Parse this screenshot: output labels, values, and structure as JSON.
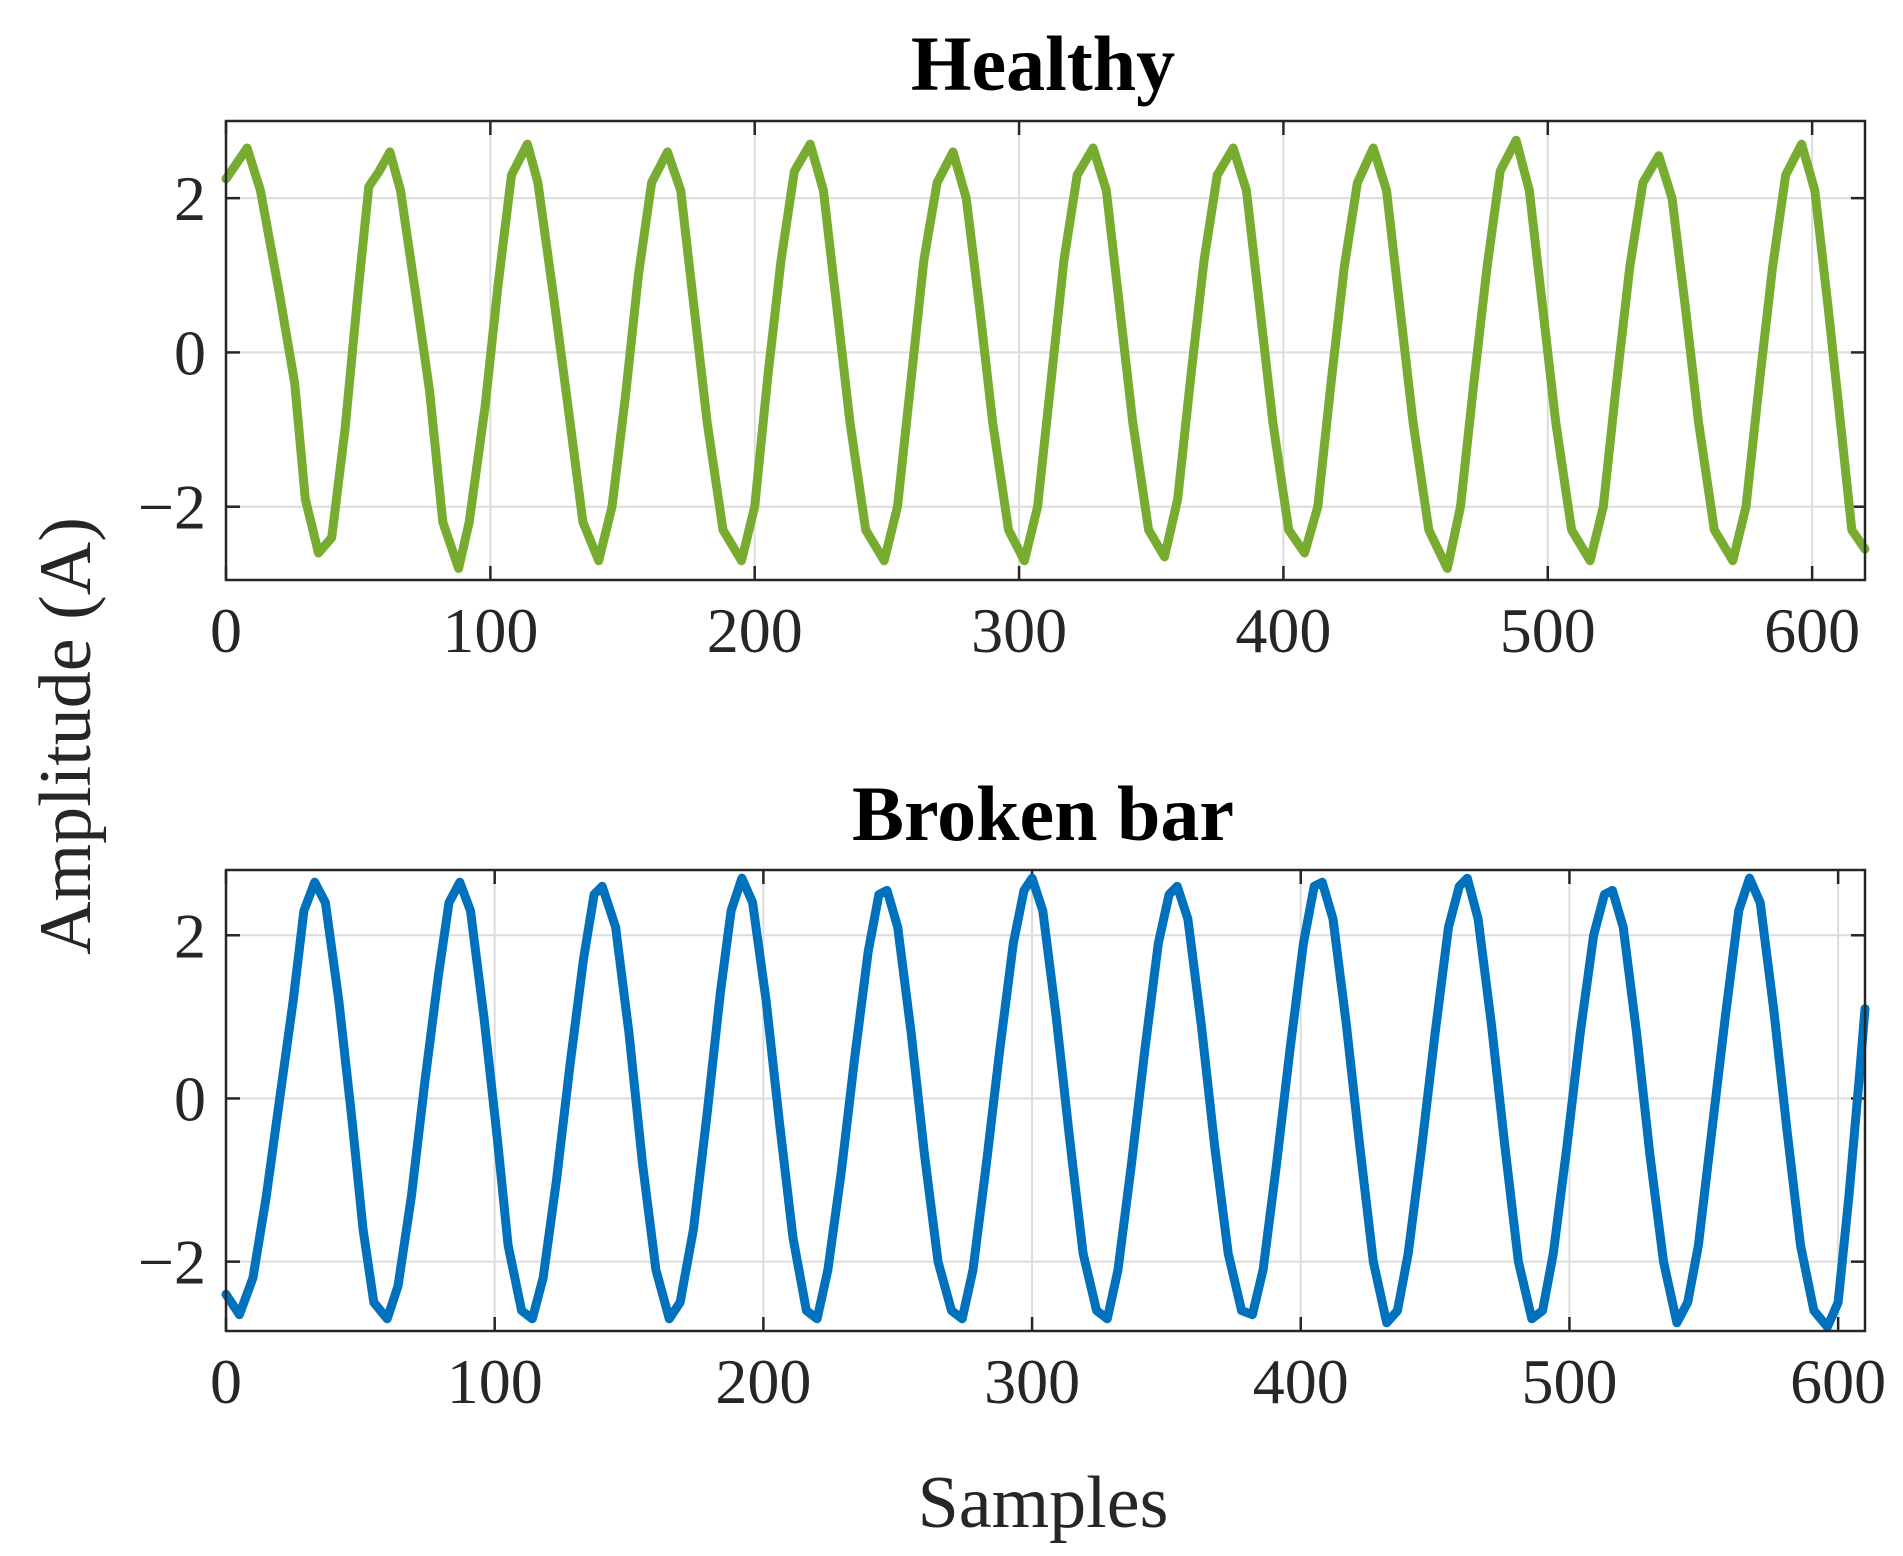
{
  "figure": {
    "ylabel": "Amplitude (A)",
    "xlabel": "Samples"
  },
  "chart_data": [
    {
      "type": "line",
      "title": "Healthy",
      "xlim": [
        0,
        620
      ],
      "ylim": [
        -2.95,
        3.0
      ],
      "xticks": [
        0,
        100,
        200,
        300,
        400,
        500,
        600
      ],
      "xtick_labels": [
        "0",
        "100",
        "200",
        "300",
        "400",
        "500",
        "600"
      ],
      "yticks": [
        -2,
        0,
        2
      ],
      "ytick_labels": [
        "−2",
        "0",
        "2"
      ],
      "grid": true,
      "series": [
        {
          "name": "Healthy",
          "color": "#77AC30",
          "amplitude": 2.65,
          "period_samples": 53.8,
          "phase_deg": 130,
          "x_end": 620,
          "points": [
            [
              0,
              2.25
            ],
            [
              4,
              2.45
            ],
            [
              8,
              2.65
            ],
            [
              13,
              2.1
            ],
            [
              20,
              0.8
            ],
            [
              26,
              -0.4
            ],
            [
              30,
              -1.9
            ],
            [
              35,
              -2.6
            ],
            [
              40,
              -2.4
            ],
            [
              45,
              -1.0
            ],
            [
              50,
              0.8
            ],
            [
              54,
              2.15
            ],
            [
              58,
              2.35
            ],
            [
              62,
              2.6
            ],
            [
              66,
              2.1
            ],
            [
              72,
              0.7
            ],
            [
              77,
              -0.5
            ],
            [
              82,
              -2.2
            ],
            [
              88,
              -2.8
            ],
            [
              92,
              -2.2
            ],
            [
              98,
              -0.7
            ],
            [
              103,
              0.9
            ],
            [
              108,
              2.3
            ],
            [
              114,
              2.7
            ],
            [
              118,
              2.2
            ],
            [
              124,
              0.7
            ],
            [
              129,
              -0.6
            ],
            [
              135,
              -2.2
            ],
            [
              141,
              -2.7
            ],
            [
              146,
              -2.0
            ],
            [
              151,
              -0.6
            ],
            [
              156,
              1.0
            ],
            [
              161,
              2.2
            ],
            [
              167,
              2.6
            ],
            [
              172,
              2.1
            ],
            [
              177,
              0.6
            ],
            [
              182,
              -0.9
            ],
            [
              188,
              -2.3
            ],
            [
              195,
              -2.7
            ],
            [
              200,
              -2.0
            ],
            [
              205,
              -0.3
            ],
            [
              210,
              1.2
            ],
            [
              215,
              2.35
            ],
            [
              221,
              2.7
            ],
            [
              226,
              2.1
            ],
            [
              231,
              0.6
            ],
            [
              236,
              -0.9
            ],
            [
              242,
              -2.3
            ],
            [
              249,
              -2.7
            ],
            [
              254,
              -2.0
            ],
            [
              259,
              -0.4
            ],
            [
              264,
              1.2
            ],
            [
              269,
              2.2
            ],
            [
              275,
              2.6
            ],
            [
              280,
              2.0
            ],
            [
              285,
              0.6
            ],
            [
              290,
              -0.9
            ],
            [
              296,
              -2.3
            ],
            [
              302,
              -2.7
            ],
            [
              307,
              -2.0
            ],
            [
              312,
              -0.4
            ],
            [
              317,
              1.2
            ],
            [
              322,
              2.3
            ],
            [
              328,
              2.65
            ],
            [
              333,
              2.1
            ],
            [
              338,
              0.6
            ],
            [
              343,
              -0.9
            ],
            [
              349,
              -2.3
            ],
            [
              355,
              -2.65
            ],
            [
              360,
              -1.9
            ],
            [
              365,
              -0.3
            ],
            [
              370,
              1.2
            ],
            [
              375,
              2.3
            ],
            [
              381,
              2.65
            ],
            [
              386,
              2.1
            ],
            [
              391,
              0.6
            ],
            [
              396,
              -0.9
            ],
            [
              402,
              -2.3
            ],
            [
              408,
              -2.6
            ],
            [
              413,
              -2.0
            ],
            [
              418,
              -0.4
            ],
            [
              423,
              1.1
            ],
            [
              428,
              2.2
            ],
            [
              434,
              2.65
            ],
            [
              439,
              2.1
            ],
            [
              444,
              0.6
            ],
            [
              449,
              -0.9
            ],
            [
              455,
              -2.3
            ],
            [
              462,
              -2.8
            ],
            [
              467,
              -2.0
            ],
            [
              472,
              -0.4
            ],
            [
              477,
              1.1
            ],
            [
              482,
              2.35
            ],
            [
              488,
              2.75
            ],
            [
              493,
              2.1
            ],
            [
              498,
              0.6
            ],
            [
              503,
              -0.9
            ],
            [
              509,
              -2.3
            ],
            [
              516,
              -2.7
            ],
            [
              521,
              -2.0
            ],
            [
              526,
              -0.4
            ],
            [
              531,
              1.1
            ],
            [
              536,
              2.2
            ],
            [
              542,
              2.55
            ],
            [
              547,
              2.0
            ],
            [
              552,
              0.6
            ],
            [
              557,
              -0.9
            ],
            [
              563,
              -2.3
            ],
            [
              570,
              -2.7
            ],
            [
              575,
              -2.0
            ],
            [
              580,
              -0.4
            ],
            [
              585,
              1.1
            ],
            [
              590,
              2.3
            ],
            [
              596,
              2.7
            ],
            [
              601,
              2.1
            ],
            [
              606,
              0.6
            ],
            [
              611,
              -1.0
            ],
            [
              615,
              -2.3
            ],
            [
              620,
              -2.55
            ]
          ]
        }
      ]
    },
    {
      "type": "line",
      "title": "Broken bar",
      "xlim": [
        0,
        610
      ],
      "ylim": [
        -2.85,
        2.8
      ],
      "xticks": [
        0,
        100,
        200,
        300,
        400,
        500,
        600
      ],
      "xtick_labels": [
        "0",
        "100",
        "200",
        "300",
        "400",
        "500",
        "600"
      ],
      "yticks": [
        -2,
        0,
        2
      ],
      "ytick_labels": [
        "−2",
        "0",
        "2"
      ],
      "grid": true,
      "series": [
        {
          "name": "Broken bar",
          "color": "#0072BD",
          "amplitude": 2.68,
          "period_samples": 53.4,
          "phase_deg": 236,
          "x_end": 610,
          "points": [
            [
              0,
              -2.4
            ],
            [
              5,
              -2.65
            ],
            [
              10,
              -2.2
            ],
            [
              15,
              -1.2
            ],
            [
              20,
              0.0
            ],
            [
              25,
              1.2
            ],
            [
              29,
              2.3
            ],
            [
              33,
              2.65
            ],
            [
              37,
              2.4
            ],
            [
              42,
              1.2
            ],
            [
              47,
              -0.3
            ],
            [
              51,
              -1.6
            ],
            [
              55,
              -2.5
            ],
            [
              60,
              -2.7
            ],
            [
              64,
              -2.3
            ],
            [
              69,
              -1.2
            ],
            [
              74,
              0.2
            ],
            [
              79,
              1.5
            ],
            [
              83,
              2.4
            ],
            [
              87,
              2.65
            ],
            [
              91,
              2.3
            ],
            [
              96,
              1.0
            ],
            [
              101,
              -0.5
            ],
            [
              105,
              -1.8
            ],
            [
              110,
              -2.6
            ],
            [
              114,
              -2.7
            ],
            [
              118,
              -2.2
            ],
            [
              123,
              -1.0
            ],
            [
              128,
              0.4
            ],
            [
              133,
              1.7
            ],
            [
              137,
              2.5
            ],
            [
              140,
              2.6
            ],
            [
              145,
              2.1
            ],
            [
              150,
              0.8
            ],
            [
              155,
              -0.8
            ],
            [
              160,
              -2.1
            ],
            [
              165,
              -2.7
            ],
            [
              169,
              -2.5
            ],
            [
              174,
              -1.6
            ],
            [
              179,
              -0.2
            ],
            [
              184,
              1.3
            ],
            [
              188,
              2.3
            ],
            [
              192,
              2.7
            ],
            [
              196,
              2.4
            ],
            [
              201,
              1.2
            ],
            [
              206,
              -0.3
            ],
            [
              211,
              -1.7
            ],
            [
              216,
              -2.6
            ],
            [
              220,
              -2.7
            ],
            [
              224,
              -2.1
            ],
            [
              229,
              -0.9
            ],
            [
              234,
              0.5
            ],
            [
              239,
              1.8
            ],
            [
              243,
              2.5
            ],
            [
              246,
              2.55
            ],
            [
              250,
              2.1
            ],
            [
              255,
              0.8
            ],
            [
              260,
              -0.7
            ],
            [
              265,
              -2.0
            ],
            [
              270,
              -2.6
            ],
            [
              274,
              -2.7
            ],
            [
              278,
              -2.1
            ],
            [
              283,
              -0.8
            ],
            [
              288,
              0.6
            ],
            [
              293,
              1.9
            ],
            [
              297,
              2.55
            ],
            [
              300,
              2.7
            ],
            [
              304,
              2.3
            ],
            [
              309,
              1.0
            ],
            [
              314,
              -0.5
            ],
            [
              319,
              -1.9
            ],
            [
              324,
              -2.6
            ],
            [
              328,
              -2.7
            ],
            [
              332,
              -2.1
            ],
            [
              337,
              -0.8
            ],
            [
              342,
              0.6
            ],
            [
              347,
              1.9
            ],
            [
              351,
              2.5
            ],
            [
              354,
              2.6
            ],
            [
              358,
              2.2
            ],
            [
              363,
              0.9
            ],
            [
              368,
              -0.6
            ],
            [
              373,
              -1.9
            ],
            [
              378,
              -2.6
            ],
            [
              382,
              -2.65
            ],
            [
              386,
              -2.1
            ],
            [
              391,
              -0.8
            ],
            [
              396,
              0.6
            ],
            [
              401,
              1.9
            ],
            [
              405,
              2.6
            ],
            [
              408,
              2.65
            ],
            [
              412,
              2.2
            ],
            [
              417,
              0.9
            ],
            [
              422,
              -0.6
            ],
            [
              427,
              -2.0
            ],
            [
              432,
              -2.75
            ],
            [
              436,
              -2.6
            ],
            [
              440,
              -1.9
            ],
            [
              445,
              -0.6
            ],
            [
              450,
              0.8
            ],
            [
              455,
              2.1
            ],
            [
              459,
              2.6
            ],
            [
              462,
              2.7
            ],
            [
              466,
              2.2
            ],
            [
              471,
              0.9
            ],
            [
              476,
              -0.6
            ],
            [
              481,
              -2.0
            ],
            [
              486,
              -2.7
            ],
            [
              490,
              -2.6
            ],
            [
              494,
              -1.9
            ],
            [
              499,
              -0.6
            ],
            [
              504,
              0.8
            ],
            [
              509,
              2.0
            ],
            [
              513,
              2.5
            ],
            [
              516,
              2.55
            ],
            [
              520,
              2.1
            ],
            [
              525,
              0.8
            ],
            [
              530,
              -0.7
            ],
            [
              535,
              -2.0
            ],
            [
              540,
              -2.75
            ],
            [
              544,
              -2.5
            ],
            [
              548,
              -1.8
            ],
            [
              553,
              -0.4
            ],
            [
              558,
              1.0
            ],
            [
              563,
              2.3
            ],
            [
              567,
              2.7
            ],
            [
              571,
              2.4
            ],
            [
              576,
              1.1
            ],
            [
              581,
              -0.4
            ],
            [
              586,
              -1.8
            ],
            [
              591,
              -2.6
            ],
            [
              596,
              -2.8
            ],
            [
              600,
              -2.5
            ],
            [
              604,
              -1.2
            ],
            [
              608,
              0.3
            ],
            [
              610,
              1.1
            ]
          ]
        }
      ]
    }
  ]
}
